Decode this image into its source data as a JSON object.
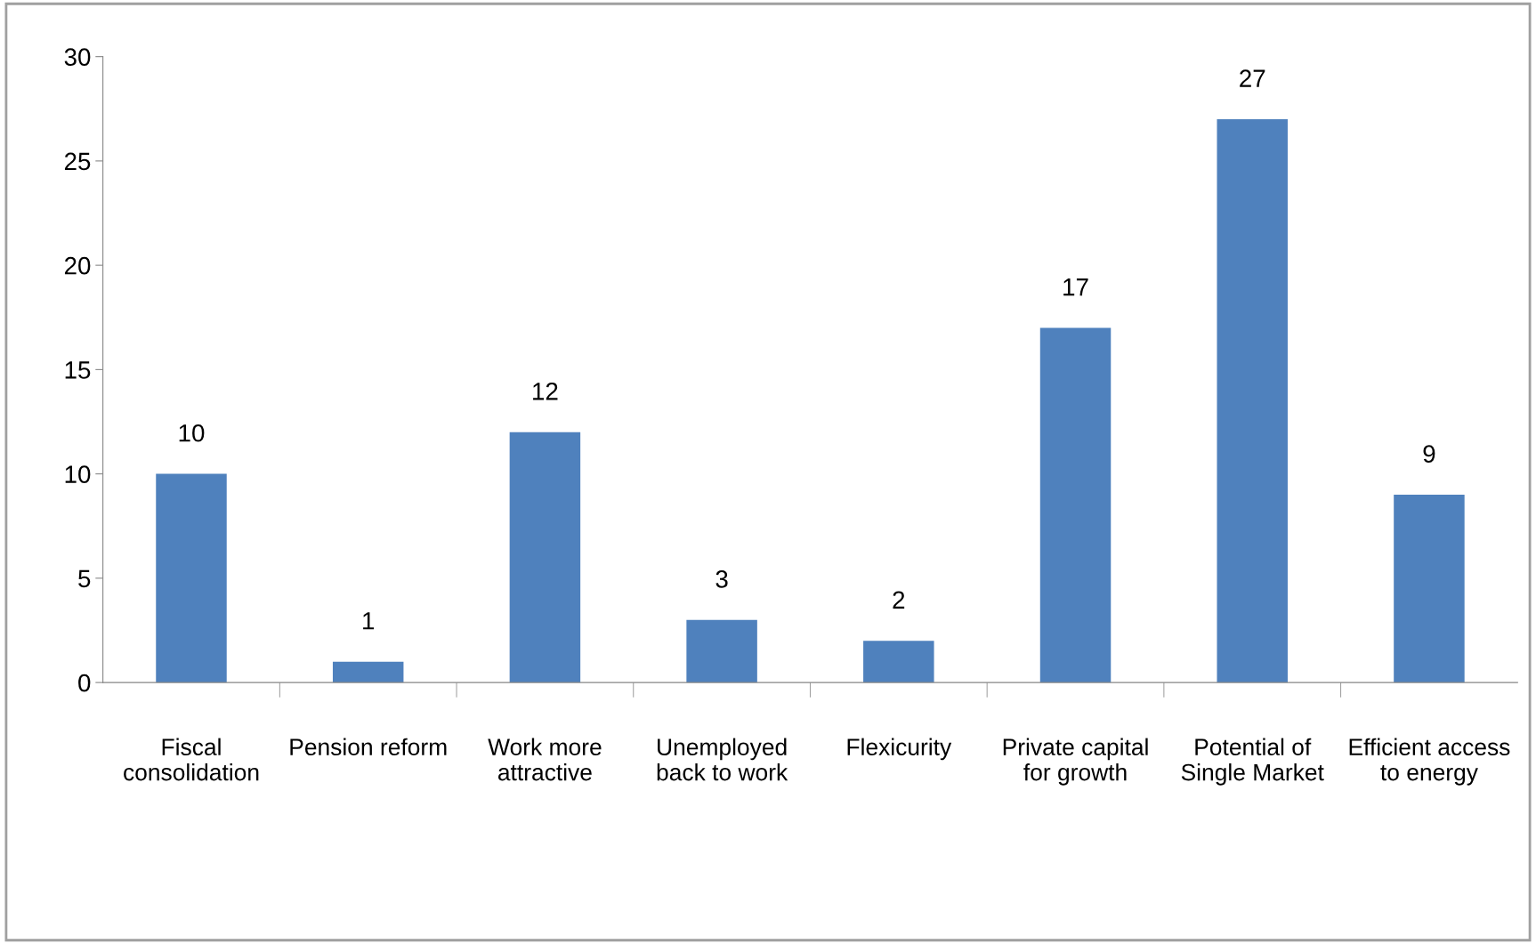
{
  "chart_data": {
    "type": "bar",
    "categories": [
      "Fiscal\nconsolidation",
      "Pension reform",
      "Work more\nattractive",
      "Unemployed\nback to work",
      "Flexicurity",
      "Private capital\nfor growth",
      "Potential of\nSingle Market",
      "Efficient access\nto energy"
    ],
    "values": [
      10,
      1,
      12,
      3,
      2,
      17,
      27,
      9
    ],
    "color": "#4f81bd",
    "ylim": [
      0,
      30
    ],
    "yticks": [
      0,
      5,
      10,
      15,
      20,
      25,
      30
    ],
    "data_labels": true,
    "grid": false
  }
}
